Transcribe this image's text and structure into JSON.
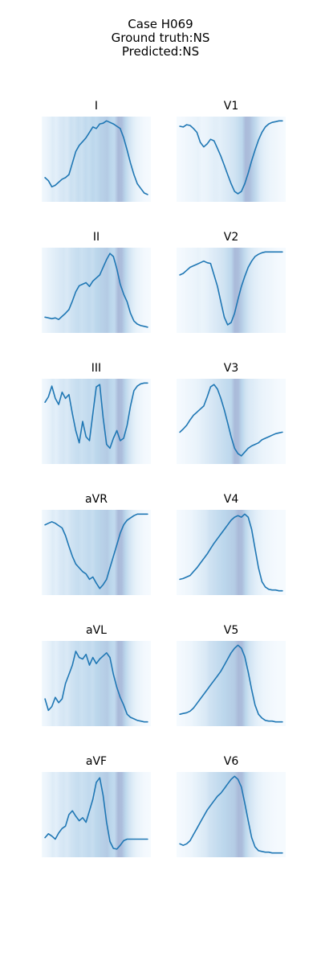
{
  "figure": {
    "title_lines": [
      "Case H069",
      "Ground truth:NS",
      "Predicted:NS"
    ]
  },
  "colors": {
    "line": "#1f77b4",
    "heat_low": "#f7fbff",
    "heat_mid": "#bcd7ec",
    "heat_high": "#a7b6d6"
  },
  "chart_data": [
    {
      "type": "line",
      "title": "I",
      "y": [
        0.26,
        0.22,
        0.14,
        0.16,
        0.2,
        0.24,
        0.26,
        0.3,
        0.45,
        0.6,
        0.68,
        0.73,
        0.78,
        0.85,
        0.92,
        0.9,
        0.96,
        0.97,
        1.0,
        0.98,
        0.96,
        0.93,
        0.9,
        0.78,
        0.62,
        0.45,
        0.3,
        0.18,
        0.12,
        0.06,
        0.04
      ],
      "heat": [
        0.05,
        0.1,
        0.15,
        0.25,
        0.2,
        0.3,
        0.35,
        0.3,
        0.45,
        0.4,
        0.5,
        0.45,
        0.55,
        0.5,
        0.6,
        0.55,
        0.65,
        0.7,
        0.75,
        0.6,
        0.55,
        0.95,
        0.9,
        0.6,
        0.4,
        0.25,
        0.15,
        0.1,
        0.05,
        0.03,
        0.02
      ]
    },
    {
      "type": "line",
      "title": "V1",
      "y": [
        0.93,
        0.92,
        0.95,
        0.94,
        0.9,
        0.85,
        0.72,
        0.66,
        0.7,
        0.76,
        0.74,
        0.64,
        0.54,
        0.42,
        0.3,
        0.18,
        0.08,
        0.05,
        0.08,
        0.18,
        0.32,
        0.48,
        0.62,
        0.75,
        0.85,
        0.92,
        0.96,
        0.98,
        0.99,
        1.0,
        1.0
      ],
      "heat": [
        0.02,
        0.03,
        0.05,
        0.08,
        0.1,
        0.12,
        0.15,
        0.1,
        0.12,
        0.15,
        0.2,
        0.22,
        0.2,
        0.25,
        0.3,
        0.35,
        0.4,
        0.5,
        0.6,
        0.95,
        0.9,
        0.7,
        0.5,
        0.3,
        0.2,
        0.15,
        0.1,
        0.08,
        0.05,
        0.03,
        0.02
      ]
    },
    {
      "type": "line",
      "title": "II",
      "y": [
        0.15,
        0.14,
        0.13,
        0.14,
        0.12,
        0.16,
        0.2,
        0.25,
        0.36,
        0.48,
        0.56,
        0.58,
        0.6,
        0.55,
        0.62,
        0.66,
        0.7,
        0.8,
        0.9,
        0.98,
        0.94,
        0.78,
        0.58,
        0.45,
        0.35,
        0.2,
        0.1,
        0.06,
        0.04,
        0.03,
        0.02
      ],
      "heat": [
        0.05,
        0.1,
        0.15,
        0.2,
        0.25,
        0.3,
        0.35,
        0.3,
        0.4,
        0.45,
        0.5,
        0.45,
        0.5,
        0.55,
        0.5,
        0.6,
        0.65,
        0.7,
        0.75,
        0.6,
        0.55,
        0.95,
        0.9,
        0.6,
        0.4,
        0.25,
        0.15,
        0.1,
        0.05,
        0.03,
        0.02
      ]
    },
    {
      "type": "line",
      "title": "V2",
      "y": [
        0.7,
        0.72,
        0.76,
        0.8,
        0.82,
        0.84,
        0.86,
        0.88,
        0.86,
        0.85,
        0.7,
        0.55,
        0.35,
        0.15,
        0.05,
        0.08,
        0.2,
        0.38,
        0.55,
        0.68,
        0.8,
        0.88,
        0.94,
        0.97,
        0.99,
        1.0,
        1.0,
        1.0,
        1.0,
        1.0,
        1.0
      ],
      "heat": [
        0.02,
        0.03,
        0.05,
        0.08,
        0.1,
        0.12,
        0.15,
        0.12,
        0.15,
        0.2,
        0.25,
        0.3,
        0.35,
        0.4,
        0.5,
        0.6,
        0.95,
        0.9,
        0.7,
        0.5,
        0.35,
        0.25,
        0.2,
        0.15,
        0.12,
        0.1,
        0.08,
        0.05,
        0.03,
        0.02,
        0.02
      ]
    },
    {
      "type": "line",
      "title": "III",
      "y": [
        0.75,
        0.82,
        0.96,
        0.8,
        0.72,
        0.88,
        0.8,
        0.85,
        0.6,
        0.38,
        0.22,
        0.5,
        0.3,
        0.25,
        0.6,
        0.95,
        0.98,
        0.55,
        0.2,
        0.15,
        0.28,
        0.38,
        0.25,
        0.28,
        0.45,
        0.7,
        0.9,
        0.96,
        0.99,
        1.0,
        1.0
      ],
      "heat": [
        0.05,
        0.1,
        0.15,
        0.25,
        0.2,
        0.3,
        0.35,
        0.3,
        0.4,
        0.45,
        0.5,
        0.45,
        0.5,
        0.55,
        0.5,
        0.6,
        0.65,
        0.7,
        0.75,
        0.6,
        0.55,
        0.95,
        0.9,
        0.6,
        0.4,
        0.25,
        0.15,
        0.1,
        0.05,
        0.03,
        0.02
      ]
    },
    {
      "type": "line",
      "title": "V3",
      "y": [
        0.36,
        0.4,
        0.45,
        0.52,
        0.58,
        0.62,
        0.66,
        0.7,
        0.82,
        0.95,
        0.98,
        0.92,
        0.8,
        0.65,
        0.48,
        0.3,
        0.15,
        0.08,
        0.05,
        0.1,
        0.15,
        0.18,
        0.2,
        0.22,
        0.26,
        0.28,
        0.3,
        0.32,
        0.34,
        0.35,
        0.36
      ],
      "heat": [
        0.02,
        0.03,
        0.05,
        0.08,
        0.1,
        0.12,
        0.15,
        0.2,
        0.25,
        0.3,
        0.35,
        0.4,
        0.45,
        0.5,
        0.55,
        0.6,
        0.95,
        0.9,
        0.6,
        0.4,
        0.3,
        0.25,
        0.2,
        0.15,
        0.12,
        0.1,
        0.08,
        0.05,
        0.03,
        0.02,
        0.02
      ]
    },
    {
      "type": "line",
      "title": "aVR",
      "y": [
        0.86,
        0.88,
        0.9,
        0.88,
        0.85,
        0.82,
        0.72,
        0.58,
        0.45,
        0.35,
        0.3,
        0.25,
        0.22,
        0.15,
        0.18,
        0.1,
        0.03,
        0.08,
        0.15,
        0.3,
        0.45,
        0.6,
        0.75,
        0.86,
        0.92,
        0.95,
        0.98,
        1.0,
        1.0,
        1.0,
        1.0
      ],
      "heat": [
        0.05,
        0.1,
        0.15,
        0.25,
        0.2,
        0.3,
        0.35,
        0.3,
        0.4,
        0.45,
        0.5,
        0.45,
        0.5,
        0.55,
        0.5,
        0.6,
        0.65,
        0.7,
        0.75,
        0.6,
        0.55,
        0.95,
        0.9,
        0.6,
        0.4,
        0.25,
        0.15,
        0.1,
        0.05,
        0.03,
        0.02
      ]
    },
    {
      "type": "line",
      "title": "V4",
      "y": [
        0.15,
        0.16,
        0.18,
        0.2,
        0.25,
        0.3,
        0.36,
        0.42,
        0.48,
        0.55,
        0.62,
        0.68,
        0.74,
        0.8,
        0.86,
        0.92,
        0.96,
        0.98,
        0.96,
        1.0,
        0.96,
        0.8,
        0.55,
        0.3,
        0.12,
        0.05,
        0.02,
        0.01,
        0.01,
        0.0,
        0.0
      ],
      "heat": [
        0.02,
        0.03,
        0.05,
        0.08,
        0.1,
        0.15,
        0.2,
        0.25,
        0.3,
        0.4,
        0.45,
        0.5,
        0.55,
        0.6,
        0.65,
        0.7,
        0.75,
        0.95,
        0.9,
        0.6,
        0.4,
        0.3,
        0.2,
        0.15,
        0.1,
        0.08,
        0.05,
        0.03,
        0.02,
        0.02,
        0.02
      ]
    },
    {
      "type": "line",
      "title": "aVL",
      "y": [
        0.3,
        0.15,
        0.2,
        0.32,
        0.25,
        0.3,
        0.5,
        0.62,
        0.74,
        0.92,
        0.84,
        0.82,
        0.88,
        0.74,
        0.84,
        0.76,
        0.82,
        0.86,
        0.9,
        0.84,
        0.62,
        0.45,
        0.32,
        0.22,
        0.1,
        0.06,
        0.04,
        0.02,
        0.01,
        0.0,
        0.0
      ],
      "heat": [
        0.05,
        0.1,
        0.15,
        0.25,
        0.2,
        0.3,
        0.35,
        0.3,
        0.4,
        0.45,
        0.5,
        0.45,
        0.5,
        0.55,
        0.5,
        0.6,
        0.65,
        0.7,
        0.75,
        0.6,
        0.55,
        0.95,
        0.9,
        0.6,
        0.4,
        0.25,
        0.15,
        0.1,
        0.05,
        0.03,
        0.02
      ]
    },
    {
      "type": "line",
      "title": "V5",
      "y": [
        0.1,
        0.11,
        0.12,
        0.14,
        0.18,
        0.24,
        0.3,
        0.36,
        0.42,
        0.48,
        0.54,
        0.6,
        0.66,
        0.74,
        0.82,
        0.9,
        0.96,
        1.0,
        0.96,
        0.85,
        0.65,
        0.42,
        0.22,
        0.1,
        0.05,
        0.02,
        0.01,
        0.01,
        0.0,
        0.0,
        0.0
      ],
      "heat": [
        0.02,
        0.03,
        0.05,
        0.08,
        0.1,
        0.15,
        0.2,
        0.25,
        0.3,
        0.4,
        0.45,
        0.5,
        0.55,
        0.6,
        0.65,
        0.7,
        0.75,
        0.95,
        0.9,
        0.6,
        0.4,
        0.3,
        0.2,
        0.15,
        0.1,
        0.08,
        0.05,
        0.03,
        0.02,
        0.02,
        0.02
      ]
    },
    {
      "type": "line",
      "title": "aVF",
      "y": [
        0.2,
        0.25,
        0.22,
        0.18,
        0.26,
        0.32,
        0.35,
        0.5,
        0.55,
        0.48,
        0.42,
        0.46,
        0.4,
        0.55,
        0.7,
        0.92,
        0.98,
        0.75,
        0.4,
        0.15,
        0.06,
        0.05,
        0.1,
        0.16,
        0.18,
        0.18,
        0.18,
        0.18,
        0.18,
        0.18,
        0.18
      ],
      "heat": [
        0.05,
        0.1,
        0.15,
        0.25,
        0.2,
        0.3,
        0.35,
        0.3,
        0.4,
        0.45,
        0.5,
        0.45,
        0.5,
        0.55,
        0.5,
        0.6,
        0.65,
        0.7,
        0.75,
        0.6,
        0.55,
        0.95,
        0.9,
        0.6,
        0.4,
        0.25,
        0.15,
        0.1,
        0.05,
        0.03,
        0.02
      ]
    },
    {
      "type": "line",
      "title": "V6",
      "y": [
        0.12,
        0.1,
        0.12,
        0.16,
        0.24,
        0.32,
        0.4,
        0.48,
        0.56,
        0.62,
        0.68,
        0.74,
        0.78,
        0.84,
        0.9,
        0.96,
        1.0,
        0.96,
        0.86,
        0.65,
        0.42,
        0.2,
        0.08,
        0.03,
        0.02,
        0.01,
        0.01,
        0.0,
        0.0,
        0.0,
        0.0
      ],
      "heat": [
        0.02,
        0.03,
        0.05,
        0.08,
        0.1,
        0.15,
        0.2,
        0.25,
        0.3,
        0.4,
        0.45,
        0.5,
        0.55,
        0.6,
        0.65,
        0.7,
        0.75,
        0.95,
        0.9,
        0.6,
        0.4,
        0.3,
        0.2,
        0.15,
        0.1,
        0.08,
        0.05,
        0.03,
        0.02,
        0.02,
        0.02
      ]
    }
  ]
}
